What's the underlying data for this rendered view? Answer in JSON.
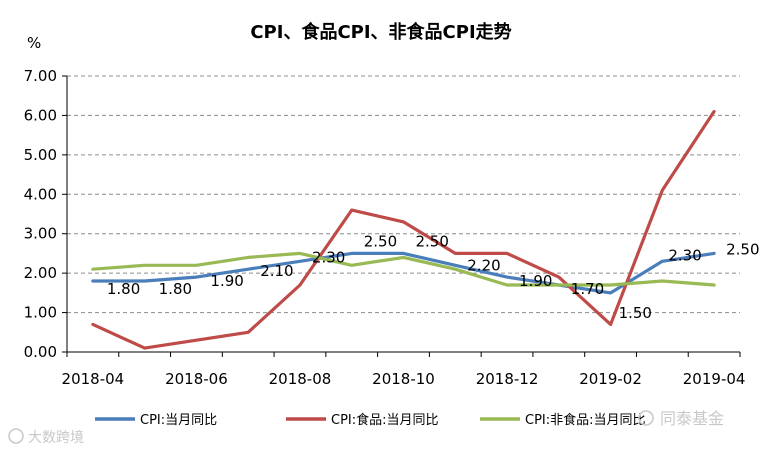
{
  "chart_data": {
    "type": "line",
    "title": "CPI、食品CPI、非食品CPI走势",
    "ylabel": "%",
    "xlabel": "",
    "ylim": [
      0,
      7
    ],
    "yticks": [
      "0.00",
      "1.00",
      "2.00",
      "3.00",
      "4.00",
      "5.00",
      "6.00",
      "7.00"
    ],
    "grid": true,
    "categories": [
      "2018-04",
      "2018-05",
      "2018-06",
      "2018-07",
      "2018-08",
      "2018-09",
      "2018-10",
      "2018-11",
      "2018-12",
      "2019-01",
      "2019-02",
      "2019-03",
      "2019-04"
    ],
    "xticklabels": [
      "2018-04",
      "2018-06",
      "2018-08",
      "2018-10",
      "2018-12",
      "2019-02",
      "2019-04"
    ],
    "series": [
      {
        "name": "CPI:当月同比",
        "color": "#4a7ebb",
        "values": [
          1.8,
          1.8,
          1.9,
          2.1,
          2.3,
          2.5,
          2.5,
          2.2,
          1.9,
          1.7,
          1.5,
          2.3,
          2.5
        ],
        "labels": [
          "1.80",
          "1.80",
          "1.90",
          "2.10",
          "2.30",
          "2.50",
          "2.50",
          "2.20",
          "1.90",
          "1.70",
          "1.50",
          "2.30",
          "2.50"
        ]
      },
      {
        "name": "CPI:食品:当月同比",
        "color": "#be4b48",
        "values": [
          0.7,
          0.1,
          0.3,
          0.5,
          1.7,
          3.6,
          3.3,
          2.5,
          2.5,
          1.9,
          0.7,
          4.1,
          6.1
        ]
      },
      {
        "name": "CPI:非食品:当月同比",
        "color": "#98b954",
        "values": [
          2.1,
          2.2,
          2.2,
          2.4,
          2.5,
          2.2,
          2.4,
          2.1,
          1.7,
          1.7,
          1.7,
          1.8,
          1.7
        ]
      }
    ],
    "legend": "bottom",
    "annotations": [
      "同泰基金",
      "大数跨境"
    ]
  }
}
